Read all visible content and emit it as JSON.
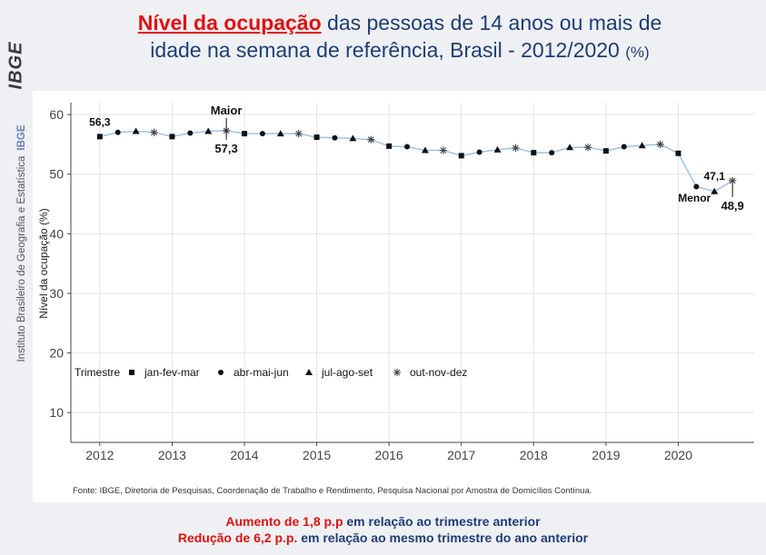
{
  "header": {
    "title_highlight": "Nível da ocupação",
    "title_rest_1": " das pessoas de 14 anos ou mais de",
    "title_line2": "idade na semana de referência, Brasil - 2012/2020",
    "title_unit": "(%)"
  },
  "sidebar": {
    "logo_text": "IBGE",
    "institute": "Instituto Brasileiro de Geografia e Estatística",
    "ibge_small": "IBGE"
  },
  "footnote": "Fonte: IBGE, Diretoria de Pesquisas, Coordenação de Trabalho e Rendimento, Pesquisa Nacional por Amostra de Domicílios Contínua.",
  "summary": {
    "line1_red": "Aumento de 1,8 p.p",
    "line1_blue": " em relação ao trimestre anterior",
    "line2_red": "Redução de 6,2 p.p.",
    "line2_blue": " em relação ao mesmo trimestre do ano anterior"
  },
  "colors": {
    "line": "#9cc3e6",
    "title": "#1f3e73",
    "accent": "#e01010"
  },
  "chart_data": {
    "type": "line",
    "ylabel": "Nível da ocupação (%)",
    "xlabel": "",
    "ylim": [
      5,
      62
    ],
    "yticks": [
      10,
      20,
      30,
      40,
      50,
      60
    ],
    "xticks": [
      "2012",
      "2013",
      "2014",
      "2015",
      "2016",
      "2017",
      "2018",
      "2019",
      "2020"
    ],
    "grid": true,
    "legend": {
      "title": "Trimestre",
      "placement": "bottom-left",
      "entries": [
        {
          "label": "jan-fev-mar",
          "marker": "square"
        },
        {
          "label": "abr-mai-jun",
          "marker": "circle"
        },
        {
          "label": "jul-ago-set",
          "marker": "triangle"
        },
        {
          "label": "out-nov-dez",
          "marker": "star"
        }
      ]
    },
    "series": [
      {
        "x": [
          2012.0,
          2012.25,
          2012.5,
          2012.75,
          2013.0,
          2013.25,
          2013.5,
          2013.75,
          2014.0,
          2014.25,
          2014.5,
          2014.75,
          2015.0,
          2015.25,
          2015.5,
          2015.75,
          2016.0,
          2016.25,
          2016.5,
          2016.75,
          2017.0,
          2017.25,
          2017.5,
          2017.75,
          2018.0,
          2018.25,
          2018.5,
          2018.75,
          2019.0,
          2019.25,
          2019.5,
          2019.75,
          2020.0,
          2020.25,
          2020.5,
          2020.75
        ],
        "values": [
          56.3,
          57.0,
          57.2,
          57.0,
          56.3,
          56.9,
          57.2,
          57.3,
          56.8,
          56.8,
          56.8,
          56.8,
          56.2,
          56.1,
          56.0,
          55.8,
          54.7,
          54.6,
          54.0,
          54.0,
          53.1,
          53.7,
          54.1,
          54.4,
          53.6,
          53.6,
          54.5,
          54.5,
          53.9,
          54.6,
          54.8,
          55.0,
          53.5,
          47.9,
          47.1,
          48.9
        ]
      }
    ],
    "annotations": [
      {
        "text": "56,3",
        "x": 2012.0,
        "y": 56.3
      },
      {
        "text": "Maior",
        "x": 2013.75,
        "y": 57.3
      },
      {
        "text": "57,3",
        "x": 2013.75,
        "y": 57.3
      },
      {
        "text": "47,1",
        "x": 2020.5,
        "y": 47.1
      },
      {
        "text": "Menor",
        "x": 2020.5,
        "y": 47.1
      },
      {
        "text": "48,9",
        "x": 2020.75,
        "y": 48.9
      }
    ]
  }
}
